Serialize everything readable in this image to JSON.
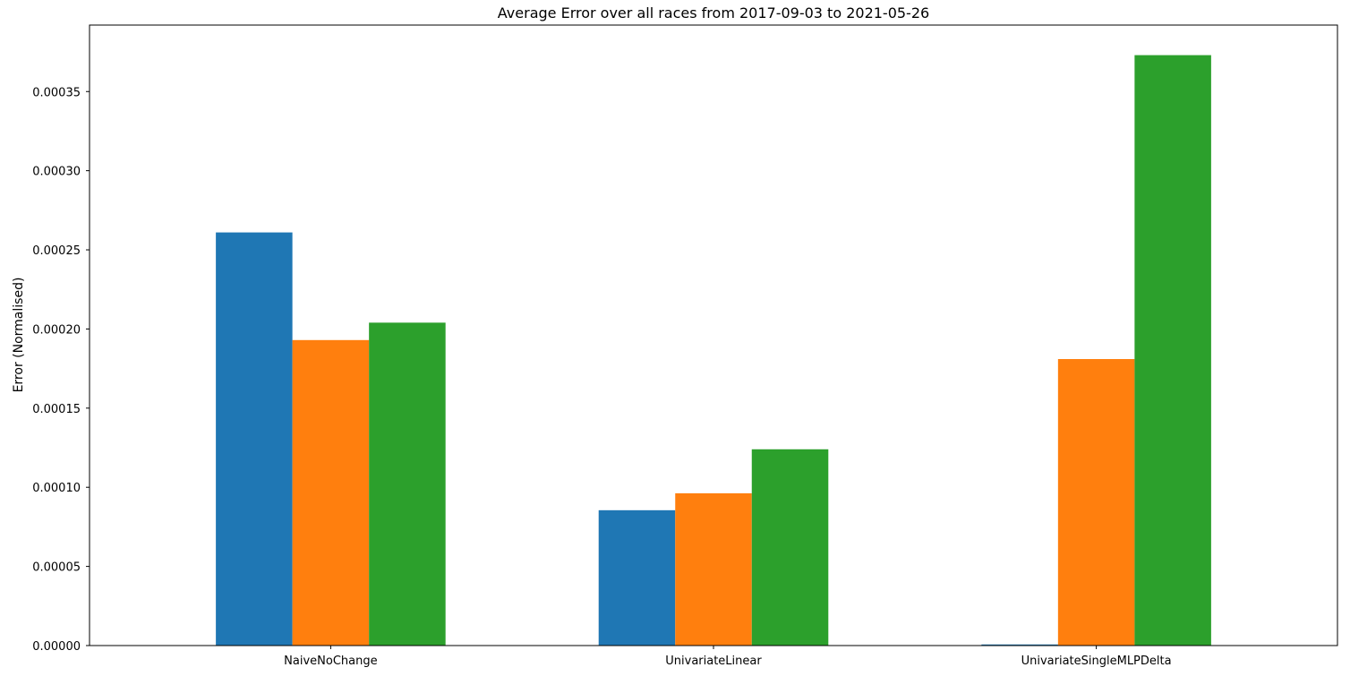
{
  "chart_data": {
    "type": "bar",
    "title": "Average Error over all races from 2017-09-03 to 2021-05-26",
    "xlabel": "",
    "ylabel": "Error (Normalised)",
    "categories": [
      "NaiveNoChange",
      "UnivariateLinear",
      "UnivariateSingleMLPDelta"
    ],
    "series": [
      {
        "color": "#1f77b4",
        "values": [
          0.000261,
          8.55e-05,
          7e-07
        ]
      },
      {
        "color": "#ff7f0e",
        "values": [
          0.000193,
          9.62e-05,
          0.000181
        ]
      },
      {
        "color": "#2ca02c",
        "values": [
          0.000204,
          0.000124,
          0.000373
        ]
      }
    ],
    "ylim": [
      0,
      0.000392
    ],
    "yticks": [
      "0.00000",
      "0.00005",
      "0.00010",
      "0.00015",
      "0.00020",
      "0.00025",
      "0.00030",
      "0.00035"
    ],
    "ytick_values": [
      0,
      5e-05,
      0.0001,
      0.00015,
      0.0002,
      0.00025,
      0.0003,
      0.00035
    ],
    "grid": false,
    "legend": "none"
  }
}
